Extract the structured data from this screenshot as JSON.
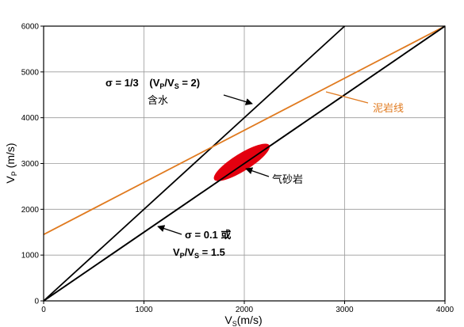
{
  "chart_data": {
    "type": "line",
    "title": "",
    "xlabel": "V",
    "xlabel_sub": "S",
    "xlabel_unit": "(m/s)",
    "ylabel": "V",
    "ylabel_sub": "P",
    "ylabel_unit": " (m/s)",
    "xlim": [
      0,
      4000
    ],
    "ylim": [
      0,
      6000
    ],
    "xticks": [
      0,
      1000,
      2000,
      3000,
      4000
    ],
    "yticks": [
      0,
      1000,
      2000,
      3000,
      4000,
      5000,
      6000
    ],
    "grid": true,
    "colors": {
      "black_lines": "#000000",
      "shale": "#e07a1f",
      "gas_sand": "#e3000f"
    },
    "series": [
      {
        "name": "σ = 1/3 (VP/VS = 2) 含水",
        "x": [
          0,
          3000
        ],
        "y": [
          0,
          6000
        ]
      },
      {
        "name": "σ = 0.1 或 VP/VS = 1.5",
        "x": [
          0,
          4000
        ],
        "y": [
          0,
          6000
        ]
      },
      {
        "name": "泥岩线",
        "x": [
          0,
          4000
        ],
        "y": [
          1450,
          6000
        ]
      }
    ],
    "region": {
      "name": "气砂岩",
      "x_range": [
        1700,
        2250
      ],
      "y_range": [
        2650,
        3400
      ]
    },
    "annotations": {
      "sigma_third": {
        "part1": "σ = 1/3",
        "part2": "(V",
        "sub_p": "P",
        "slash": "/V",
        "sub_s": "S",
        "part3": " = 2)",
        "line2": "含水"
      },
      "shale_label": "泥岩线",
      "gas_sand_label": "气砂岩",
      "sigma_01": {
        "part1": "σ = 0.1 或",
        "l2a": "V",
        "sub_p": "P",
        "l2b": "/V",
        "sub_s": "S",
        "l2c": " = 1.5"
      }
    }
  }
}
